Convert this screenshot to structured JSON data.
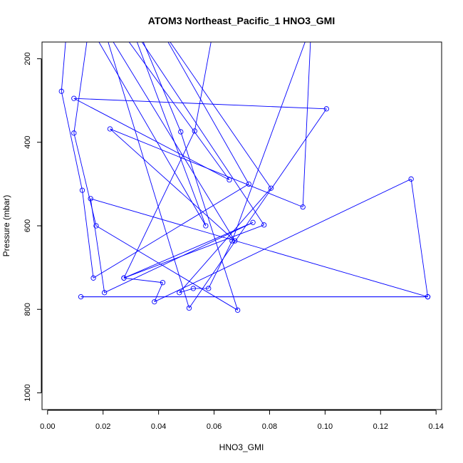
{
  "chart_data": {
    "type": "line",
    "title": "ATOM3 Northeast_Pacific_1 HNO3_GMI",
    "xlabel": "HNO3_GMI",
    "ylabel": "Pressure (mbar)",
    "xlim": [
      -0.002,
      0.142
    ],
    "ylim": [
      1040,
      160
    ],
    "y_reversed": true,
    "x_ticks": [
      0.0,
      0.02,
      0.04,
      0.06,
      0.08,
      0.1,
      0.12,
      0.14
    ],
    "x_tick_labels": [
      "0.00",
      "0.02",
      "0.04",
      "0.06",
      "0.08",
      "0.10",
      "0.12",
      "0.14"
    ],
    "y_ticks": [
      200,
      400,
      600,
      800,
      1000
    ],
    "y_tick_labels": [
      "200",
      "400",
      "600",
      "800",
      "1000"
    ],
    "grid": false,
    "legend": "none",
    "series": [
      {
        "color": "#0000ff",
        "marker": "open-circle",
        "points": [
          [
            0.007,
            120
          ],
          [
            0.005,
            278
          ],
          [
            0.0125,
            515
          ],
          [
            0.0165,
            725
          ],
          [
            0.0725,
            500
          ],
          [
            0.04,
            120
          ],
          [
            0.0805,
            510
          ],
          [
            0.0475,
            760
          ],
          [
            0.0525,
            750
          ],
          [
            0.058,
            750
          ],
          [
            0.0665,
            636
          ],
          [
            0.095,
            120
          ],
          [
            0.092,
            555
          ],
          [
            0.0225,
            368
          ],
          [
            0.0675,
            636
          ],
          [
            0.02,
            120
          ],
          [
            0.051,
            797
          ],
          [
            0.1005,
            320
          ],
          [
            0.0095,
            295
          ],
          [
            0.0655,
            490
          ],
          [
            0.025,
            120
          ],
          [
            0.032,
            120
          ],
          [
            0.048,
            375
          ],
          [
            0.0685,
            802
          ],
          [
            0.0175,
            600
          ],
          [
            0.0095,
            378
          ],
          [
            0.015,
            120
          ],
          [
            0.057,
            600
          ],
          [
            0.03,
            120
          ],
          [
            0.078,
            598
          ],
          [
            0.0275,
            725
          ],
          [
            0.074,
            592
          ],
          [
            0.0205,
            760
          ],
          [
            0.0155,
            535
          ],
          [
            0.137,
            770
          ],
          [
            0.012,
            770
          ],
          [
            0.137,
            770
          ],
          [
            0.131,
            488
          ],
          [
            0.0385,
            782
          ],
          [
            0.0415,
            736
          ],
          [
            0.0275,
            725
          ],
          [
            0.053,
            373
          ],
          [
            0.06,
            120
          ]
        ]
      }
    ]
  }
}
